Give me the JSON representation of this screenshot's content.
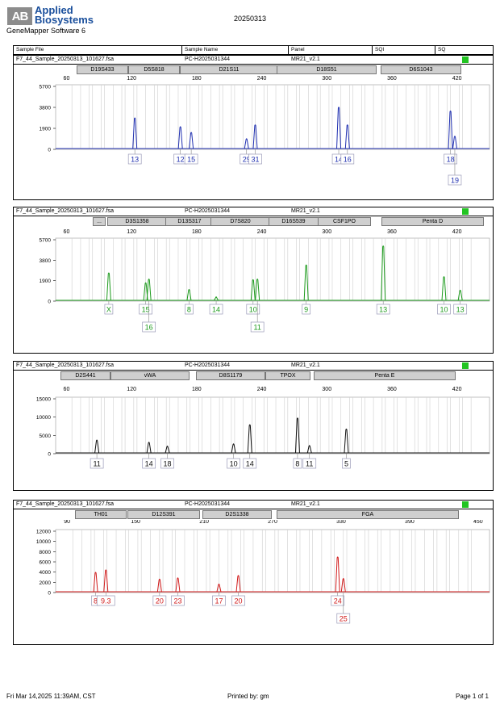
{
  "header": {
    "logo_mark": "AB",
    "logo_line1": "Applied",
    "logo_line2": "Biosystems",
    "software": "GeneMapper Software 6",
    "doc_title": "20250313"
  },
  "columns": [
    "Sample File",
    "Sample Name",
    "Panel",
    "SQI",
    "SQ"
  ],
  "footer": {
    "left": "Fri Mar 14,2025 11:39AM, CST",
    "center": "Printed by: gm",
    "right": "Page 1 of 1"
  },
  "chart_data": [
    {
      "type": "line",
      "sample_file": "F7_44_Sample_20250313_101627.fsa",
      "sample_name": "PC-H2025031344",
      "panel": "MR21_v2.1",
      "color": "#1f2fb0",
      "x_ticks": [
        60,
        120,
        180,
        240,
        300,
        360,
        420
      ],
      "y_ticks": [
        "5700",
        "3800",
        "1900",
        "0"
      ],
      "markers": [
        "D19S433",
        "D5S818",
        "D21S11",
        "D18S51",
        "D6S1043"
      ],
      "peaks": [
        {
          "x": 123,
          "h": 0.5,
          "label": "13"
        },
        {
          "x": 165,
          "h": 0.36,
          "label": "12"
        },
        {
          "x": 175,
          "h": 0.27,
          "label": "15"
        },
        {
          "x": 226,
          "h": 0.17,
          "label": "29"
        },
        {
          "x": 234,
          "h": 0.39,
          "label": "31"
        },
        {
          "x": 311,
          "h": 0.67,
          "label": "14"
        },
        {
          "x": 319,
          "h": 0.39,
          "label": "16"
        },
        {
          "x": 414,
          "h": 0.61,
          "label": "18"
        },
        {
          "x": 418,
          "h": 0.21,
          "label": "19"
        }
      ]
    },
    {
      "type": "line",
      "sample_file": "F7_44_Sample_20250313_101627.fsa",
      "sample_name": "PC-H2025031344",
      "panel": "MR21_v2.1",
      "color": "#1c9a1c",
      "x_ticks": [
        60,
        120,
        180,
        240,
        300,
        360,
        420
      ],
      "y_ticks": [
        "5700",
        "3800",
        "1900",
        "0"
      ],
      "markers": [
        "...",
        "D3S1358",
        "D13S317",
        "D7S820",
        "D16S539",
        "CSF1PO",
        "Penta D"
      ],
      "peaks": [
        {
          "x": 99,
          "h": 0.46,
          "label": "X"
        },
        {
          "x": 133,
          "h": 0.3,
          "label": "15"
        },
        {
          "x": 136,
          "h": 0.36,
          "label": "16"
        },
        {
          "x": 173,
          "h": 0.19,
          "label": "8"
        },
        {
          "x": 198,
          "h": 0.07,
          "label": "14"
        },
        {
          "x": 232,
          "h": 0.35,
          "label": "10"
        },
        {
          "x": 236,
          "h": 0.36,
          "label": "11"
        },
        {
          "x": 281,
          "h": 0.59,
          "label": "9"
        },
        {
          "x": 352,
          "h": 0.9,
          "label": "13"
        },
        {
          "x": 408,
          "h": 0.4,
          "label": "10"
        },
        {
          "x": 423,
          "h": 0.18,
          "label": "13"
        }
      ]
    },
    {
      "type": "line",
      "sample_file": "F7_44_Sample_20250313_101627.fsa",
      "sample_name": "PC-H2025031344",
      "panel": "MR21_v2.1",
      "color": "#111111",
      "x_ticks": [
        60,
        120,
        180,
        240,
        300,
        360,
        420
      ],
      "y_ticks": [
        "15000",
        "10000",
        "5000",
        "0"
      ],
      "markers": [
        "D2S441",
        "vWA",
        "D8S1179",
        "TPOX",
        "Penta E"
      ],
      "peaks": [
        {
          "x": 88,
          "h": 0.25,
          "label": "11"
        },
        {
          "x": 136,
          "h": 0.21,
          "label": "14"
        },
        {
          "x": 153,
          "h": 0.14,
          "label": "18"
        },
        {
          "x": 214,
          "h": 0.18,
          "label": "10"
        },
        {
          "x": 229,
          "h": 0.53,
          "label": "14"
        },
        {
          "x": 273,
          "h": 0.65,
          "label": "8"
        },
        {
          "x": 284,
          "h": 0.15,
          "label": "11"
        },
        {
          "x": 318,
          "h": 0.45,
          "label": "5"
        }
      ]
    },
    {
      "type": "line",
      "sample_file": "F7_44_Sample_20250313_101627.fsa",
      "sample_name": "PC-H2025031344",
      "panel": "MR21_v2.1",
      "color": "#d11a1a",
      "x_ticks": [
        90,
        150,
        210,
        270,
        330,
        390,
        450
      ],
      "y_ticks": [
        "12000",
        "10000",
        "8000",
        "6000",
        "4000",
        "2000",
        "0"
      ],
      "markers": [
        "TH01",
        "D12S391",
        "D2S1338",
        "FGA"
      ],
      "peaks": [
        {
          "x": 115,
          "h": 0.33,
          "label": "8"
        },
        {
          "x": 124,
          "h": 0.37,
          "label": "9.3"
        },
        {
          "x": 171,
          "h": 0.22,
          "label": "20"
        },
        {
          "x": 187,
          "h": 0.24,
          "label": "23"
        },
        {
          "x": 223,
          "h": 0.14,
          "label": "17"
        },
        {
          "x": 240,
          "h": 0.28,
          "label": "20"
        },
        {
          "x": 327,
          "h": 0.58,
          "label": "24"
        },
        {
          "x": 332,
          "h": 0.23,
          "label": "25"
        }
      ]
    }
  ]
}
